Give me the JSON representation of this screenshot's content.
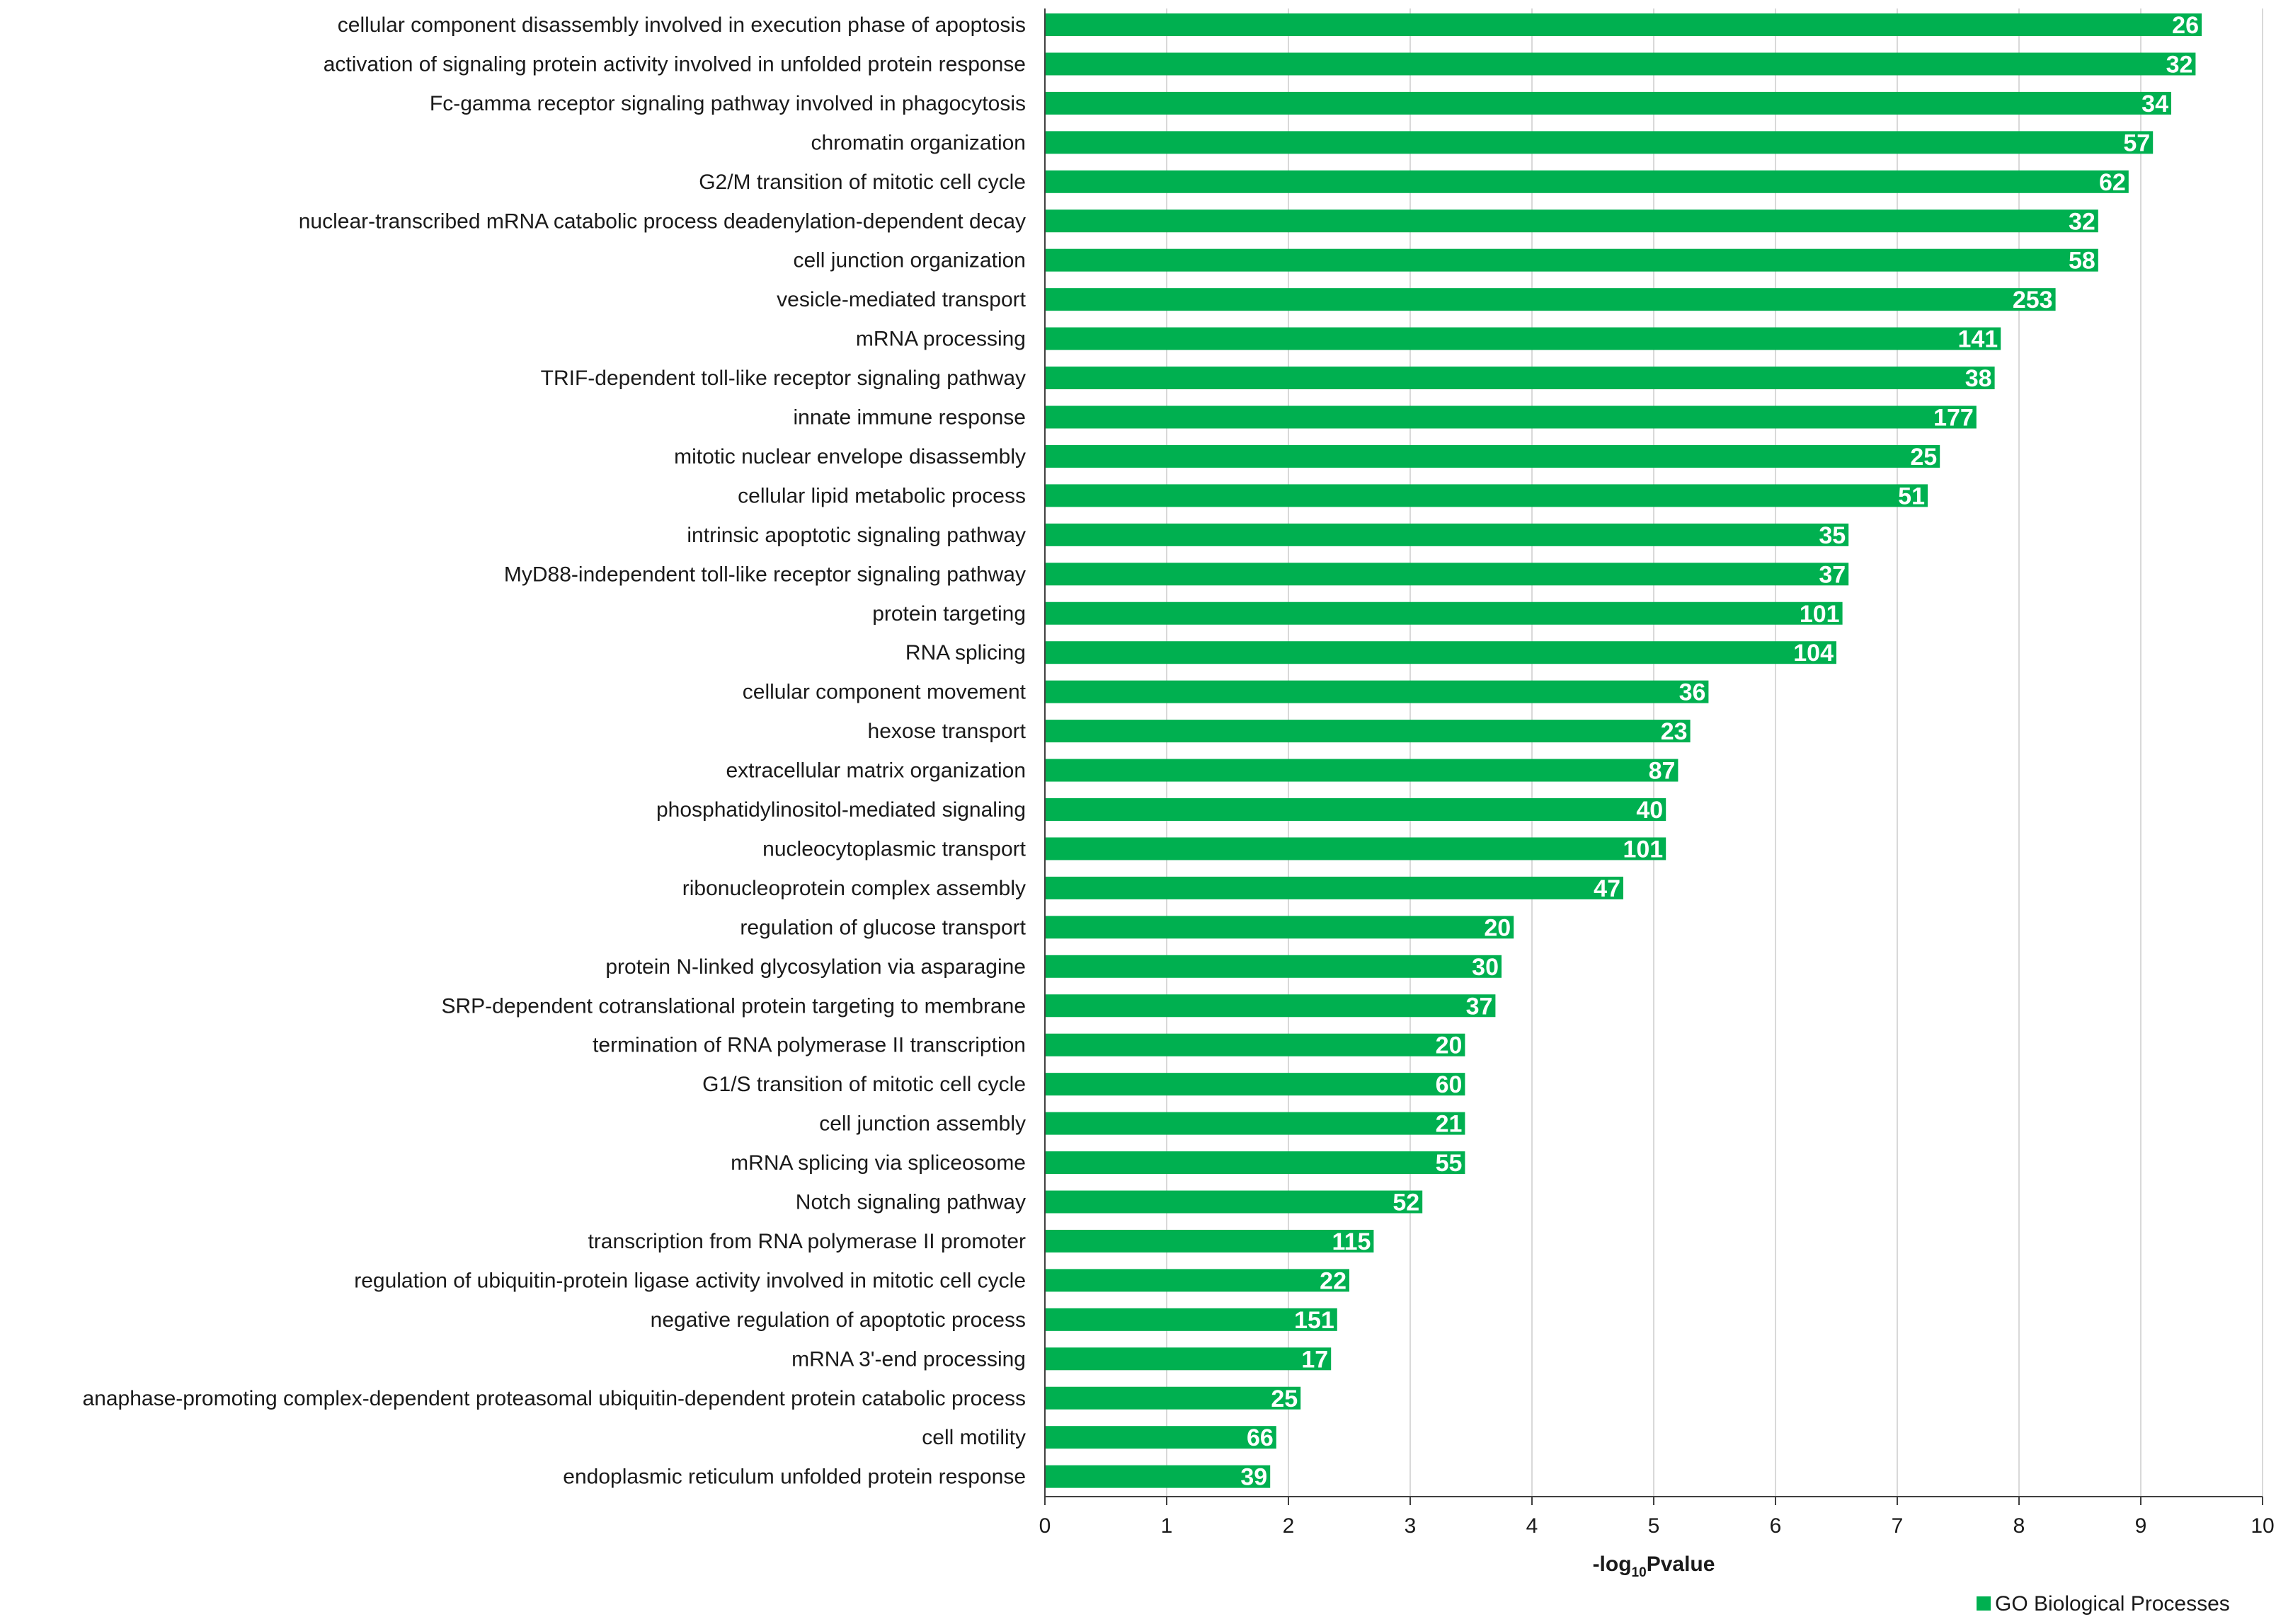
{
  "chart_data": {
    "type": "bar",
    "orientation": "horizontal",
    "categories": [
      "cellular component disassembly involved in execution phase of apoptosis",
      "activation of signaling protein activity involved in unfolded protein response",
      "Fc-gamma receptor signaling pathway involved in phagocytosis",
      "chromatin organization",
      "G2/M transition of mitotic cell cycle",
      "nuclear-transcribed mRNA catabolic process  deadenylation-dependent decay",
      "cell junction organization",
      "vesicle-mediated transport",
      "mRNA processing",
      "TRIF-dependent toll-like receptor signaling pathway",
      "innate immune response",
      "mitotic nuclear envelope disassembly",
      "cellular lipid metabolic process",
      "intrinsic apoptotic signaling pathway",
      "MyD88-independent toll-like receptor signaling pathway",
      "protein targeting",
      "RNA splicing",
      "cellular component movement",
      "hexose transport",
      "extracellular matrix organization",
      "phosphatidylinositol-mediated signaling",
      "nucleocytoplasmic transport",
      "ribonucleoprotein complex assembly",
      "regulation of glucose transport",
      "protein N-linked glycosylation via asparagine",
      "SRP-dependent cotranslational protein targeting to membrane",
      "termination of RNA polymerase II transcription",
      "G1/S transition of mitotic cell cycle",
      "cell junction assembly",
      "mRNA splicing  via spliceosome",
      "Notch signaling pathway",
      "transcription from RNA polymerase II promoter",
      "regulation of ubiquitin-protein ligase activity involved in mitotic cell cycle",
      "negative regulation of apoptotic process",
      "mRNA 3'-end processing",
      "anaphase-promoting complex-dependent proteasomal ubiquitin-dependent protein catabolic process",
      "cell motility",
      "endoplasmic reticulum unfolded protein response"
    ],
    "values": [
      9.5,
      9.45,
      9.25,
      9.1,
      8.9,
      8.65,
      8.65,
      8.3,
      7.85,
      7.8,
      7.65,
      7.35,
      7.25,
      6.6,
      6.6,
      6.55,
      6.5,
      5.45,
      5.3,
      5.2,
      5.1,
      5.1,
      4.75,
      3.85,
      3.75,
      3.7,
      3.45,
      3.45,
      3.45,
      3.45,
      3.1,
      2.7,
      2.5,
      2.4,
      2.35,
      2.1,
      1.9,
      1.85
    ],
    "counts": [
      "26",
      "32",
      "34",
      "57",
      "62",
      "32",
      "58",
      "253",
      "141",
      "38",
      "177",
      "25",
      "51",
      "35",
      "37",
      "101",
      "104",
      "36",
      "23",
      "87",
      "40",
      "101",
      "47",
      "20",
      "30",
      "37",
      "20",
      "60",
      "21",
      "55",
      "52",
      "115",
      "22",
      "151",
      "17",
      "25",
      "66",
      "39"
    ],
    "xlim": [
      0,
      10
    ],
    "xticks": [
      "0",
      "1",
      "2",
      "3",
      "4",
      "5",
      "6",
      "7",
      "8",
      "9",
      "10"
    ],
    "xlabel": "-log",
    "xlabel_sub": "10",
    "xlabel_tail": "Pvalue",
    "grid": "vertical",
    "legend_placement": "bottom-right",
    "series": [
      {
        "name": "GO Biological Processes",
        "color": "#00b050"
      }
    ]
  }
}
